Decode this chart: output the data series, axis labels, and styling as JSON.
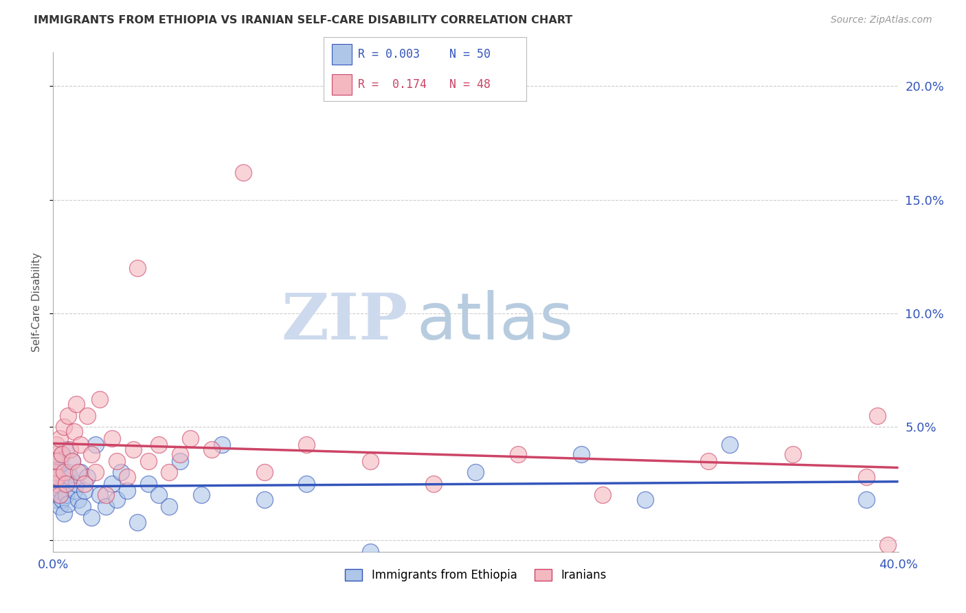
{
  "title": "IMMIGRANTS FROM ETHIOPIA VS IRANIAN SELF-CARE DISABILITY CORRELATION CHART",
  "source": "Source: ZipAtlas.com",
  "ylabel": "Self-Care Disability",
  "xlim": [
    0.0,
    0.4
  ],
  "ylim": [
    -0.005,
    0.215
  ],
  "color_blue": "#aec6e8",
  "color_pink": "#f4b8c1",
  "trendline_blue": "#3355bb",
  "trendline_pink": "#cc4466",
  "watermark_zip": "ZIP",
  "watermark_atlas": "atlas",
  "watermark_color": "#dce8f5",
  "ethiopia_x": [
    0.0005,
    0.001,
    0.001,
    0.0015,
    0.002,
    0.002,
    0.0025,
    0.003,
    0.003,
    0.0035,
    0.004,
    0.004,
    0.005,
    0.005,
    0.006,
    0.006,
    0.007,
    0.007,
    0.008,
    0.009,
    0.01,
    0.011,
    0.012,
    0.013,
    0.014,
    0.015,
    0.016,
    0.018,
    0.02,
    0.022,
    0.025,
    0.028,
    0.03,
    0.032,
    0.035,
    0.04,
    0.045,
    0.05,
    0.055,
    0.06,
    0.07,
    0.08,
    0.1,
    0.12,
    0.15,
    0.2,
    0.25,
    0.28,
    0.32,
    0.385
  ],
  "ethiopia_y": [
    0.022,
    0.028,
    0.018,
    0.032,
    0.025,
    0.02,
    0.03,
    0.015,
    0.035,
    0.022,
    0.038,
    0.018,
    0.025,
    0.012,
    0.04,
    0.02,
    0.03,
    0.016,
    0.028,
    0.035,
    0.022,
    0.025,
    0.018,
    0.03,
    0.015,
    0.022,
    0.028,
    0.01,
    0.042,
    0.02,
    0.015,
    0.025,
    0.018,
    0.03,
    0.022,
    0.008,
    0.025,
    0.02,
    0.015,
    0.035,
    0.02,
    0.042,
    0.018,
    0.025,
    -0.005,
    0.03,
    0.038,
    0.018,
    0.042,
    0.018
  ],
  "iran_x": [
    0.0005,
    0.001,
    0.001,
    0.0015,
    0.002,
    0.002,
    0.003,
    0.003,
    0.004,
    0.005,
    0.005,
    0.006,
    0.007,
    0.008,
    0.009,
    0.01,
    0.011,
    0.012,
    0.013,
    0.015,
    0.016,
    0.018,
    0.02,
    0.022,
    0.025,
    0.028,
    0.03,
    0.035,
    0.038,
    0.04,
    0.045,
    0.05,
    0.055,
    0.06,
    0.065,
    0.075,
    0.09,
    0.1,
    0.12,
    0.15,
    0.18,
    0.22,
    0.26,
    0.31,
    0.35,
    0.385,
    0.39,
    0.395
  ],
  "iran_y": [
    0.03,
    0.038,
    0.025,
    0.042,
    0.028,
    0.035,
    0.02,
    0.045,
    0.038,
    0.03,
    0.05,
    0.025,
    0.055,
    0.04,
    0.035,
    0.048,
    0.06,
    0.03,
    0.042,
    0.025,
    0.055,
    0.038,
    0.03,
    0.062,
    0.02,
    0.045,
    0.035,
    0.028,
    0.04,
    0.12,
    0.035,
    0.042,
    0.03,
    0.038,
    0.045,
    0.04,
    0.162,
    0.03,
    0.042,
    0.035,
    0.025,
    0.038,
    0.02,
    0.035,
    0.038,
    0.028,
    0.055,
    -0.002
  ],
  "legend_r1": "R = 0.003",
  "legend_n1": "N = 50",
  "legend_r2": "R =  0.174",
  "legend_n2": "N = 48"
}
